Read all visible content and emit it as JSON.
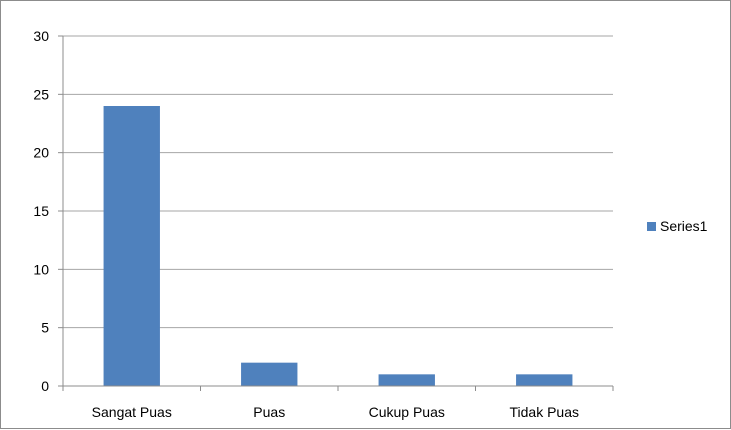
{
  "chart_data": {
    "type": "bar",
    "categories": [
      "Sangat Puas",
      "Puas",
      "Cukup Puas",
      "Tidak Puas"
    ],
    "series": [
      {
        "name": "Series1",
        "values": [
          24,
          2,
          1,
          1
        ],
        "color": "#4f81bd"
      }
    ],
    "yticks": [
      "0",
      "5",
      "10",
      "15",
      "20",
      "25",
      "30"
    ],
    "ylim": [
      0,
      30
    ],
    "title": "",
    "xlabel": "",
    "ylabel": "",
    "grid": true,
    "legend_position": "right"
  }
}
